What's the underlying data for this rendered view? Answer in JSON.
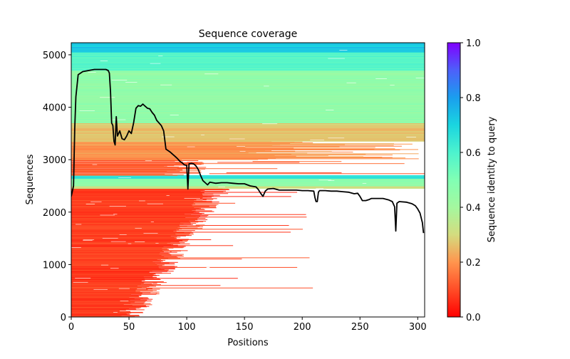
{
  "chart_data": {
    "type": "heatmap",
    "title": "Sequence coverage",
    "xlabel": "Positions",
    "ylabel": "Sequences",
    "xlim": [
      0,
      306
    ],
    "ylim": [
      0,
      5230
    ],
    "xticks": [
      0,
      50,
      100,
      150,
      200,
      250,
      300
    ],
    "yticks": [
      0,
      1000,
      2000,
      3000,
      4000,
      5000
    ],
    "grid": false,
    "colormap": "rainbow",
    "colorbar": {
      "label": "Sequence identity to query",
      "range": [
        0,
        1
      ],
      "ticks": [
        "0.0",
        "0.2",
        "0.4",
        "0.6",
        "0.8",
        "1.0"
      ]
    },
    "bands": [
      {
        "seq_from": 0,
        "seq_to": 2450,
        "identity": 0.08,
        "description": "low-identity sequences, mostly covering positions 0-110"
      },
      {
        "seq_from": 2450,
        "seq_to": 2500,
        "identity": 0.32
      },
      {
        "seq_from": 2500,
        "seq_to": 2640,
        "identity": 0.45
      },
      {
        "seq_from": 2640,
        "seq_to": 2700,
        "identity": 0.65
      },
      {
        "seq_from": 2700,
        "seq_to": 3000,
        "identity": 0.12
      },
      {
        "seq_from": 3000,
        "seq_to": 3350,
        "identity": 0.2
      },
      {
        "seq_from": 3350,
        "seq_to": 3700,
        "identity": 0.27
      },
      {
        "seq_from": 3700,
        "seq_to": 4700,
        "identity": 0.45
      },
      {
        "seq_from": 4700,
        "seq_to": 5050,
        "identity": 0.58
      },
      {
        "seq_from": 5050,
        "seq_to": 5230,
        "identity": 0.72
      }
    ],
    "coverage_series": {
      "name": "coverage",
      "color": "#000000",
      "x": [
        0,
        2,
        3,
        4,
        6,
        10,
        15,
        20,
        25,
        30,
        32,
        33,
        34,
        35,
        36,
        37,
        38,
        39,
        40,
        42,
        44,
        46,
        48,
        50,
        52,
        54,
        56,
        58,
        60,
        62,
        64,
        66,
        68,
        70,
        72,
        74,
        76,
        78,
        80,
        82,
        84,
        86,
        88,
        90,
        92,
        94,
        96,
        98,
        100,
        101,
        102,
        104,
        106,
        108,
        110,
        112,
        114,
        116,
        118,
        120,
        125,
        130,
        135,
        140,
        145,
        150,
        155,
        160,
        162,
        164,
        166,
        168,
        170,
        175,
        180,
        185,
        190,
        195,
        200,
        205,
        210,
        211,
        212,
        213,
        214,
        215,
        220,
        225,
        230,
        235,
        240,
        245,
        248,
        250,
        252,
        255,
        258,
        260,
        265,
        270,
        275,
        278,
        280,
        281,
        282,
        284,
        290,
        295,
        298,
        300,
        302,
        304,
        305
      ],
      "y": [
        2300,
        2500,
        3600,
        4200,
        4620,
        4680,
        4700,
        4720,
        4720,
        4720,
        4700,
        4650,
        4300,
        3700,
        3650,
        3350,
        3280,
        3820,
        3450,
        3550,
        3400,
        3380,
        3450,
        3550,
        3500,
        3700,
        3980,
        4030,
        4020,
        4060,
        4020,
        3980,
        3970,
        3900,
        3850,
        3750,
        3700,
        3650,
        3550,
        3200,
        3170,
        3140,
        3100,
        3060,
        3020,
        2970,
        2940,
        2900,
        2890,
        2440,
        2920,
        2930,
        2920,
        2880,
        2810,
        2700,
        2600,
        2560,
        2520,
        2570,
        2550,
        2560,
        2560,
        2550,
        2540,
        2540,
        2500,
        2480,
        2430,
        2360,
        2300,
        2400,
        2440,
        2450,
        2420,
        2420,
        2420,
        2420,
        2410,
        2410,
        2400,
        2280,
        2200,
        2200,
        2380,
        2410,
        2410,
        2400,
        2400,
        2390,
        2380,
        2350,
        2360,
        2300,
        2220,
        2220,
        2240,
        2260,
        2260,
        2260,
        2230,
        2200,
        2100,
        1640,
        2170,
        2200,
        2190,
        2160,
        2120,
        2060,
        1980,
        1800,
        1600
      ]
    }
  }
}
